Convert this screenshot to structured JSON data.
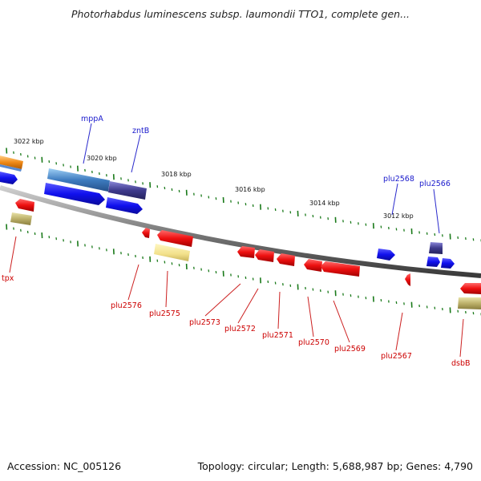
{
  "title": "Photorhabdus luminescens subsp. laumondii TTO1, complete gen...",
  "footer": {
    "accession": "Accession: NC_005126",
    "topology": "Topology: circular; Length: 5,688,987 bp; Genes: 4,790"
  },
  "scale_labels": [
    "3022 kbp",
    "3020 kbp",
    "3018 kbp",
    "3016 kbp",
    "3014 kbp",
    "3012 kbp"
  ],
  "genes_top": [
    "mppA",
    "zntB",
    "plu2568",
    "plu2566"
  ],
  "genes_bottom": [
    "tpx",
    "plu2576",
    "plu2575",
    "plu2573",
    "plu2572",
    "plu2571",
    "plu2570",
    "plu2569",
    "plu2567",
    "dsbB"
  ],
  "colors": {
    "forward_gene": "#1010ee",
    "reverse_gene": "#ee1010",
    "backbone": "#8a8a8a",
    "ticks": "#1a7a1a",
    "label_blue": "#1a1acc",
    "label_red": "#cc0000"
  }
}
